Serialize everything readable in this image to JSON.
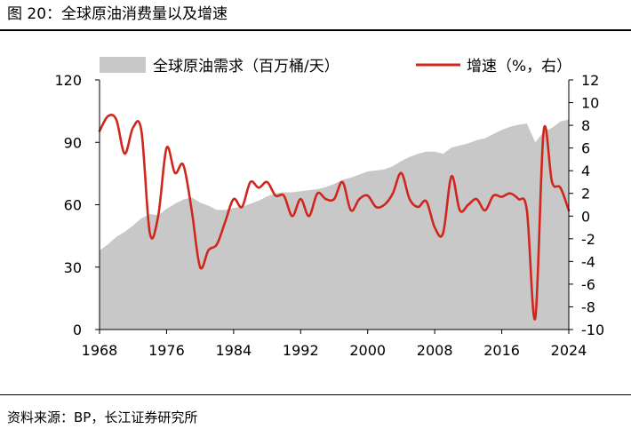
{
  "figure_title": "图 20：全球原油消费量以及增速",
  "source": "资料来源：BP，长江证券研究所",
  "chart_data": {
    "type": "area+line",
    "x_ticks": [
      "1968",
      "1976",
      "1984",
      "1992",
      "2000",
      "2008",
      "2016",
      "2024"
    ],
    "y_left": {
      "ticks": [
        "0",
        "30",
        "60",
        "90",
        "120"
      ],
      "range": [
        0,
        120
      ]
    },
    "y_right": {
      "ticks": [
        "-10",
        "-8",
        "-6",
        "-4",
        "-2",
        "0",
        "2",
        "4",
        "6",
        "8",
        "10",
        "12"
      ],
      "range": [
        -10,
        12
      ]
    },
    "colors": {
      "area": "#c8c8c8",
      "line": "#d0261c"
    },
    "series": [
      {
        "name": "全球原油需求（百万桶/天）",
        "type": "area",
        "axis": "left",
        "x": [
          1968,
          1969,
          1970,
          1971,
          1972,
          1973,
          1974,
          1975,
          1976,
          1977,
          1978,
          1979,
          1980,
          1981,
          1982,
          1983,
          1984,
          1985,
          1986,
          1987,
          1988,
          1989,
          1990,
          1991,
          1992,
          1993,
          1994,
          1995,
          1996,
          1997,
          1998,
          1999,
          2000,
          2001,
          2002,
          2003,
          2004,
          2005,
          2006,
          2007,
          2008,
          2009,
          2010,
          2011,
          2012,
          2013,
          2014,
          2015,
          2016,
          2017,
          2018,
          2019,
          2020,
          2021,
          2022,
          2023,
          2024
        ],
        "values": [
          38,
          41,
          44.5,
          47,
          50,
          53.5,
          55.5,
          55,
          58,
          60.5,
          62.5,
          63.5,
          61,
          59.5,
          57.5,
          57.5,
          58.5,
          59,
          60.5,
          62,
          64,
          65.5,
          66,
          66,
          66.5,
          67,
          67.5,
          68.5,
          70,
          72,
          73,
          74.5,
          76,
          76.5,
          77,
          78.5,
          81,
          83,
          84.5,
          85.5,
          85.5,
          84.5,
          87.5,
          88.5,
          89.5,
          91,
          92,
          94,
          96,
          97.5,
          98.5,
          99,
          90,
          95,
          97,
          100,
          101
        ]
      },
      {
        "name": "增速（%，右）",
        "type": "line",
        "axis": "right",
        "x": [
          1968,
          1969,
          1970,
          1971,
          1972,
          1973,
          1974,
          1975,
          1976,
          1977,
          1978,
          1979,
          1980,
          1981,
          1982,
          1983,
          1984,
          1985,
          1986,
          1987,
          1988,
          1989,
          1990,
          1991,
          1992,
          1993,
          1994,
          1995,
          1996,
          1997,
          1998,
          1999,
          2000,
          2001,
          2002,
          2003,
          2004,
          2005,
          2006,
          2007,
          2008,
          2009,
          2010,
          2011,
          2012,
          2013,
          2014,
          2015,
          2016,
          2017,
          2018,
          2019,
          2020,
          2021,
          2022,
          2023,
          2024
        ],
        "values": [
          7.5,
          8.8,
          8.5,
          5.5,
          7.8,
          7.5,
          -1.5,
          0,
          6,
          3.8,
          4.5,
          0.5,
          -4.5,
          -3,
          -2.5,
          -0.5,
          1.5,
          0.8,
          3,
          2.5,
          3,
          1.8,
          1.8,
          0,
          1.5,
          0,
          2,
          1.5,
          1.5,
          3,
          0.5,
          1.5,
          1.8,
          0.8,
          1,
          2,
          3.8,
          1.5,
          0.8,
          1.3,
          -1,
          -1.5,
          3.5,
          0.5,
          1,
          1.5,
          0.5,
          1.8,
          1.7,
          2,
          1.5,
          0.5,
          -9,
          7.5,
          3,
          2.5,
          0.5
        ]
      }
    ]
  }
}
